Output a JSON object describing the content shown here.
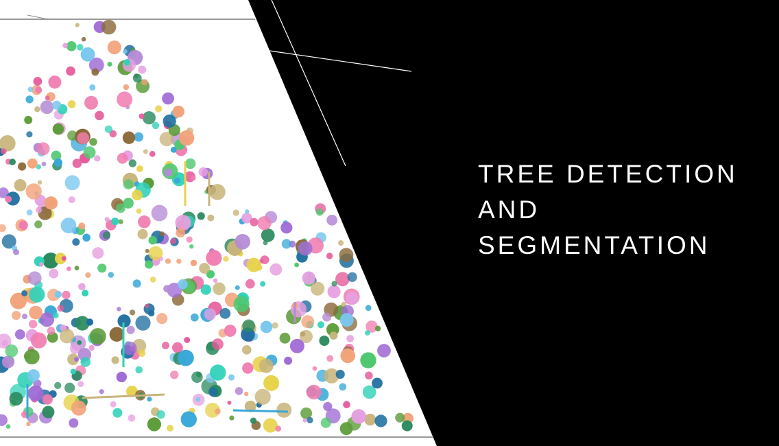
{
  "title": {
    "line1": "TREE DETECTION",
    "line2": "AND",
    "line3": "SEGMENTATION"
  },
  "colors": {
    "background": "#000000",
    "plot_background": "#ffffff",
    "text": "#ffffff",
    "accent_line": "#ffffff",
    "palette": [
      "#3aa8d8",
      "#e6a0e0",
      "#2fd1b8",
      "#a06cd5",
      "#f2a37a",
      "#5d9c3a",
      "#e7d24a",
      "#2b8a5e",
      "#f07db0",
      "#7ac7ef",
      "#b58bd6",
      "#c8b47a",
      "#4fc870",
      "#1f6fa0",
      "#e55a9a",
      "#8a6a3a"
    ]
  }
}
